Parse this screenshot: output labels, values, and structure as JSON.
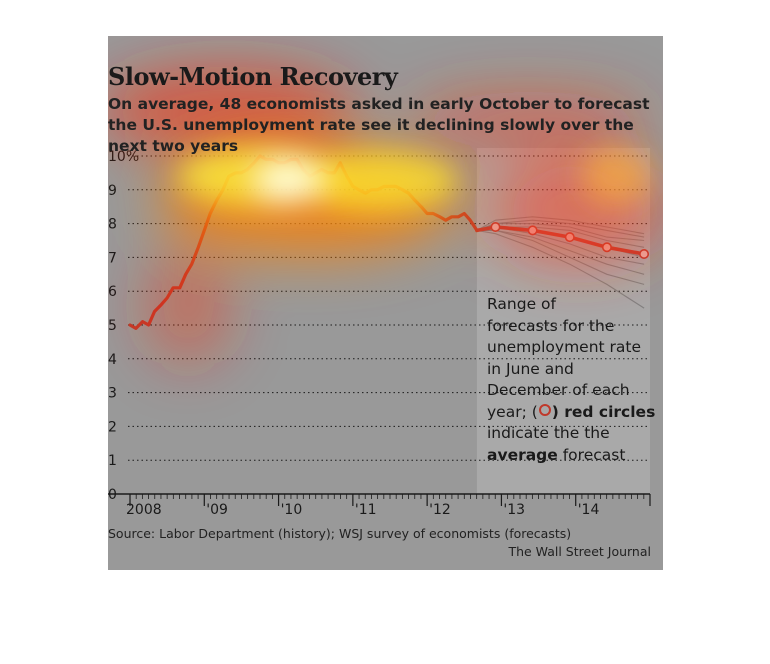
{
  "title": "Slow-Motion Recovery",
  "subtitle": "On average, 48 economists asked in early October to forecast the U.S. unemployment rate see it declining slowly over the next two years",
  "annotation": {
    "line1": "Range of",
    "line2": "forecasts for the",
    "line3": "unemployment rate",
    "line4": "in June and",
    "line5": "December of each",
    "line6_prefix": "year; (",
    "line6_bold": ") red circles",
    "line7": "indicate the the",
    "line8_bold": "average",
    "line8_suffix": " forecast"
  },
  "source": "Source: Labor Department (history); WSJ survey of economists (forecasts)",
  "credit": "The Wall Street Journal",
  "colors": {
    "background": "#999999",
    "forecast_panel": "#a9a9a9",
    "history_line": "#c0392b",
    "forecast_line": "#c0392b",
    "range_lines": "#7a7a7a",
    "grid": "#1a1a1a"
  },
  "chart_data": {
    "type": "line",
    "ylim": [
      0,
      10
    ],
    "y_ticks": [
      {
        "value": 10,
        "label": "10%"
      },
      {
        "value": 9,
        "label": "9"
      },
      {
        "value": 8,
        "label": "8"
      },
      {
        "value": 7,
        "label": "7"
      },
      {
        "value": 6,
        "label": "6"
      },
      {
        "value": 5,
        "label": "5"
      },
      {
        "value": 4,
        "label": "4"
      },
      {
        "value": 3,
        "label": "3"
      },
      {
        "value": 2,
        "label": "2"
      },
      {
        "value": 1,
        "label": "1"
      },
      {
        "value": 0,
        "label": "0"
      }
    ],
    "x_range": [
      2008.0,
      2015.0
    ],
    "x_ticks": [
      {
        "value": 2008,
        "label": "2008"
      },
      {
        "value": 2009,
        "label": "'09"
      },
      {
        "value": 2010,
        "label": "'10"
      },
      {
        "value": 2011,
        "label": "'11"
      },
      {
        "value": 2012,
        "label": "'12"
      },
      {
        "value": 2013,
        "label": "'13"
      },
      {
        "value": 2014,
        "label": "'14"
      }
    ],
    "grid": true,
    "series": [
      {
        "role": "history",
        "x": [
          2008.0,
          2008.08,
          2008.17,
          2008.25,
          2008.33,
          2008.42,
          2008.5,
          2008.58,
          2008.67,
          2008.75,
          2008.83,
          2008.92,
          2009.0,
          2009.08,
          2009.17,
          2009.25,
          2009.33,
          2009.42,
          2009.5,
          2009.58,
          2009.67,
          2009.75,
          2009.83,
          2009.92,
          2010.0,
          2010.08,
          2010.17,
          2010.25,
          2010.33,
          2010.42,
          2010.5,
          2010.58,
          2010.67,
          2010.75,
          2010.83,
          2010.92,
          2011.0,
          2011.08,
          2011.17,
          2011.25,
          2011.33,
          2011.42,
          2011.5,
          2011.58,
          2011.67,
          2011.75,
          2011.83,
          2011.92,
          2012.0,
          2012.08,
          2012.17,
          2012.25,
          2012.33,
          2012.42,
          2012.5,
          2012.58,
          2012.67
        ],
        "values": [
          5.0,
          4.9,
          5.1,
          5.0,
          5.4,
          5.6,
          5.8,
          6.1,
          6.1,
          6.5,
          6.8,
          7.3,
          7.8,
          8.3,
          8.7,
          9.0,
          9.4,
          9.5,
          9.5,
          9.6,
          9.8,
          10.0,
          9.9,
          9.9,
          9.8,
          9.8,
          9.9,
          9.9,
          9.6,
          9.4,
          9.5,
          9.6,
          9.5,
          9.5,
          9.8,
          9.4,
          9.1,
          9.0,
          8.9,
          9.0,
          9.0,
          9.1,
          9.1,
          9.1,
          9.0,
          8.9,
          8.7,
          8.5,
          8.3,
          8.3,
          8.2,
          8.1,
          8.2,
          8.2,
          8.3,
          8.1,
          7.8
        ]
      },
      {
        "role": "average-forecast",
        "x": [
          2012.67,
          2012.92,
          2013.42,
          2013.92,
          2014.42,
          2014.92
        ],
        "values": [
          7.8,
          7.9,
          7.8,
          7.6,
          7.3,
          7.1
        ]
      }
    ],
    "forecast_range": {
      "x": [
        2012.67,
        2012.92,
        2013.42,
        2013.92,
        2014.42,
        2014.92
      ],
      "paths": [
        [
          7.8,
          8.1,
          8.2,
          8.1,
          7.9,
          7.7
        ],
        [
          7.8,
          8.0,
          8.1,
          8.0,
          7.8,
          7.6
        ],
        [
          7.8,
          8.0,
          8.0,
          7.9,
          7.6,
          7.5
        ],
        [
          7.8,
          7.9,
          7.9,
          7.8,
          7.5,
          7.3
        ],
        [
          7.8,
          7.9,
          7.8,
          7.6,
          7.3,
          7.0
        ],
        [
          7.8,
          7.9,
          7.7,
          7.4,
          7.0,
          6.8
        ],
        [
          7.8,
          7.8,
          7.6,
          7.2,
          6.8,
          6.5
        ],
        [
          7.8,
          7.8,
          7.5,
          7.0,
          6.5,
          6.2
        ],
        [
          7.8,
          7.7,
          7.3,
          6.8,
          6.2,
          5.5
        ]
      ]
    }
  }
}
